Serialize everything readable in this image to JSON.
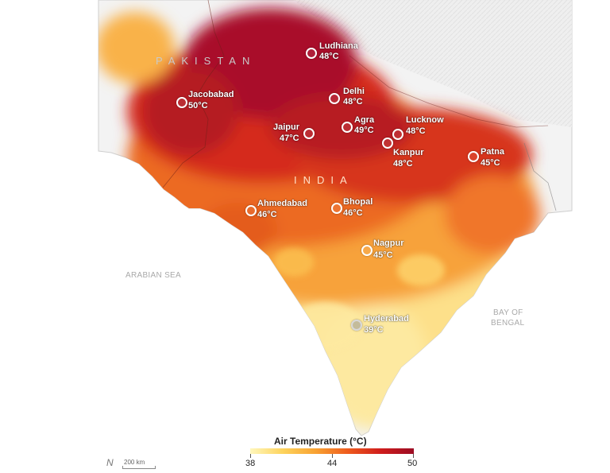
{
  "map": {
    "country_labels": {
      "pakistan": "PAKISTAN",
      "india": "INDIA"
    },
    "water_labels": {
      "arabian_sea": "ARABIAN SEA",
      "bay_of_bengal_line1": "BAY OF",
      "bay_of_bengal_line2": "BENGAL"
    },
    "cities": [
      {
        "name": "Ludhiana",
        "temp": "48°C"
      },
      {
        "name": "Jacobabad",
        "temp": "50°C"
      },
      {
        "name": "Delhi",
        "temp": "48°C"
      },
      {
        "name": "Agra",
        "temp": "49°C"
      },
      {
        "name": "Lucknow",
        "temp": "48°C"
      },
      {
        "name": "Jaipur",
        "temp": "47°C"
      },
      {
        "name": "Kanpur",
        "temp": "48°C"
      },
      {
        "name": "Patna",
        "temp": "45°C"
      },
      {
        "name": "Ahmedabad",
        "temp": "46°C"
      },
      {
        "name": "Bhopal",
        "temp": "46°C"
      },
      {
        "name": "Nagpur",
        "temp": "45°C"
      },
      {
        "name": "Hyderabad",
        "temp": "39°C"
      }
    ],
    "scale_label": "200 km",
    "north_symbol": "N"
  },
  "legend": {
    "title": "Air Temperature (°C)",
    "ticks": [
      "38",
      "44",
      "50"
    ],
    "range": [
      38,
      50
    ],
    "colors": {
      "low": "#fff7bc",
      "mid": "#f8a232",
      "high": "#9c0d24"
    }
  }
}
